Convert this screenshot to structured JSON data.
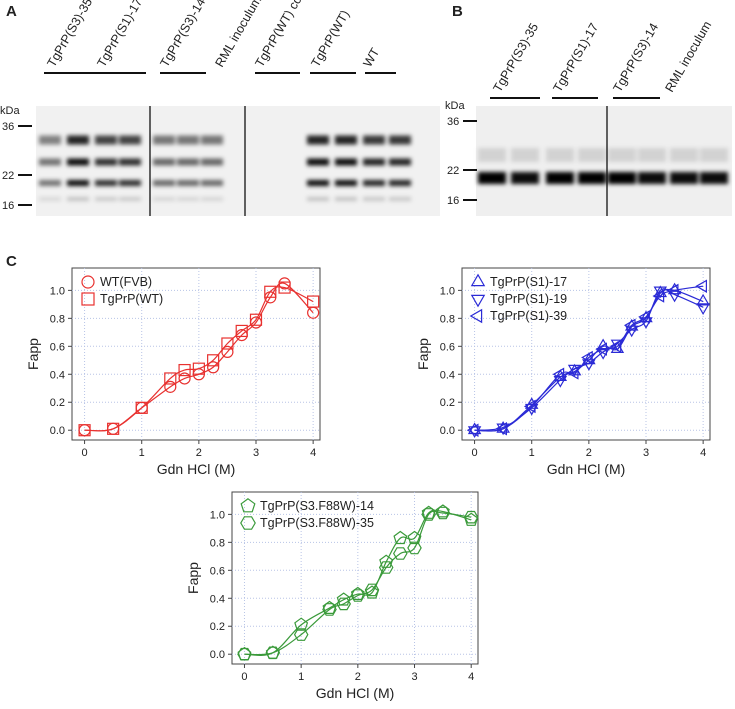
{
  "panels": {
    "a": "A",
    "b": "B",
    "c": "C"
  },
  "blot_a": {
    "kda": "kDa",
    "markers": [
      "36",
      "22",
      "16"
    ],
    "lanes": [
      "TgPrP(S3)-35",
      "TgPrP(S1)-17",
      "TgPrP(S3)-14",
      "RML inoculum",
      "TgPrP(WT) control",
      "TgPrP(WT)",
      "WT"
    ]
  },
  "blot_b": {
    "kda": "kDa",
    "markers": [
      "36",
      "22",
      "16"
    ],
    "lanes": [
      "TgPrP(S3)-35",
      "TgPrP(S1)-17",
      "TgPrP(S3)-14",
      "RML inoculum"
    ]
  },
  "chart_data": [
    {
      "type": "scatter",
      "x_label": "Gdn HCl (M)",
      "y_label": "Fapp",
      "x": [
        0,
        0.5,
        1,
        1.5,
        1.75,
        2,
        2.25,
        2.5,
        2.75,
        3,
        3.25,
        3.5,
        4
      ],
      "series": [
        {
          "name": "WT(FVB)",
          "color": "#e8312f",
          "marker": "circle",
          "values": [
            0,
            0.01,
            0.16,
            0.31,
            0.37,
            0.4,
            0.45,
            0.56,
            0.68,
            0.77,
            0.95,
            1.05,
            0.84
          ]
        },
        {
          "name": "TgPrP(WT)",
          "color": "#e8312f",
          "marker": "square",
          "values": [
            0,
            0.01,
            0.16,
            0.37,
            0.43,
            0.44,
            0.5,
            0.62,
            0.71,
            0.79,
            0.99,
            1.02,
            0.92
          ]
        }
      ],
      "xlim": [
        -0.22,
        4.12
      ],
      "xticks": [
        0,
        1,
        2,
        3,
        4
      ],
      "ylim": [
        -0.07,
        1.16
      ],
      "yticks": [
        {
          "value": 0,
          "label": "0.0"
        },
        0.2,
        0.4,
        0.6,
        0.8,
        {
          "value": 1,
          "label": "1.0"
        }
      ],
      "grid": true
    },
    {
      "type": "scatter",
      "x_label": "Gdn HCl (M)",
      "y_label": "Fapp",
      "x": [
        0,
        0.5,
        1,
        1.5,
        1.75,
        2,
        2.25,
        2.5,
        2.75,
        3,
        3.25,
        3.5,
        4
      ],
      "series": [
        {
          "name": "TgPrP(S1)-17",
          "color": "#2b2bd6",
          "marker": "triangle-up",
          "values": [
            0,
            0.01,
            0.18,
            0.38,
            0.42,
            0.5,
            0.6,
            0.58,
            0.74,
            0.8,
            0.98,
            1.0,
            0.92
          ]
        },
        {
          "name": "TgPrP(S1)-19",
          "color": "#2b2bd6",
          "marker": "triangle-down",
          "values": [
            0,
            0.02,
            0.16,
            0.36,
            0.44,
            0.48,
            0.56,
            0.62,
            0.72,
            0.78,
            1.0,
            0.97,
            0.88
          ]
        },
        {
          "name": "TgPrP(S1)-39",
          "color": "#2b2bd6",
          "marker": "triangle-left",
          "values": [
            0,
            0.01,
            0.17,
            0.4,
            0.41,
            0.52,
            0.58,
            0.6,
            0.75,
            0.81,
            0.96,
            1.0,
            1.03
          ]
        }
      ],
      "xlim": [
        -0.22,
        4.12
      ],
      "xticks": [
        0,
        1,
        2,
        3,
        4
      ],
      "ylim": [
        -0.07,
        1.16
      ],
      "yticks": [
        {
          "value": 0,
          "label": "0.0"
        },
        0.2,
        0.4,
        0.6,
        0.8,
        {
          "value": 1,
          "label": "1.0"
        }
      ],
      "grid": true
    },
    {
      "type": "scatter",
      "x_label": "Gdn HCl (M)",
      "y_label": "Fapp",
      "x": [
        0,
        0.5,
        1,
        1.5,
        1.75,
        2,
        2.25,
        2.5,
        2.75,
        3,
        3.25,
        3.5,
        4
      ],
      "series": [
        {
          "name": "TgPrP(S3.F88W)-14",
          "color": "#3a9a3a",
          "marker": "pentagon",
          "values": [
            0,
            0.01,
            0.21,
            0.33,
            0.39,
            0.43,
            0.44,
            0.66,
            0.83,
            0.83,
            1.01,
            1.02,
            0.96
          ]
        },
        {
          "name": "TgPrP(S3.F88W)-35",
          "color": "#3a9a3a",
          "marker": "hexagon",
          "values": [
            0,
            0.01,
            0.14,
            0.32,
            0.36,
            0.42,
            0.46,
            0.62,
            0.72,
            0.76,
            1.0,
            1.01,
            0.98
          ]
        }
      ],
      "xlim": [
        -0.22,
        4.12
      ],
      "xticks": [
        0,
        1,
        2,
        3,
        4
      ],
      "ylim": [
        -0.07,
        1.16
      ],
      "yticks": [
        {
          "value": 0,
          "label": "0.0"
        },
        0.2,
        0.4,
        0.6,
        0.8,
        {
          "value": 1,
          "label": "1.0"
        }
      ],
      "grid": true
    }
  ]
}
